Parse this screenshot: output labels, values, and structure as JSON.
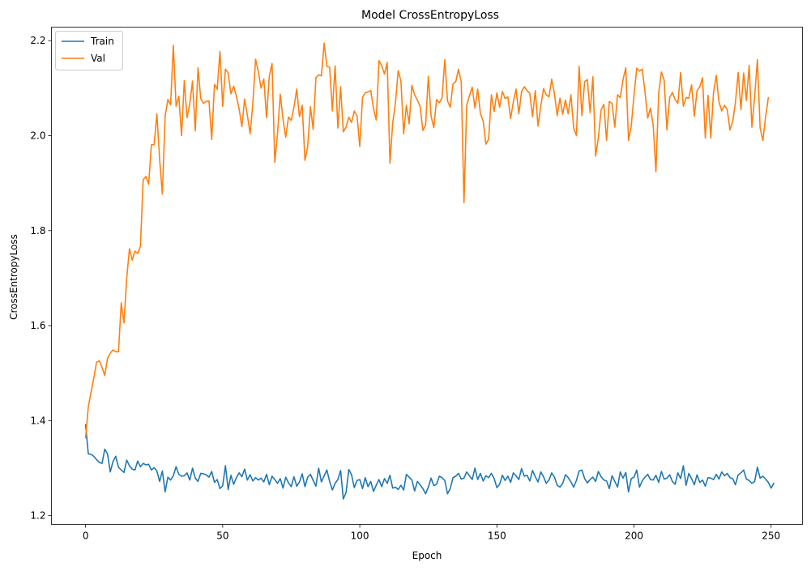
{
  "chart_data": {
    "type": "line",
    "title": "Model CrossEntropyLoss",
    "xlabel": "Epoch",
    "ylabel": "CrossEntropyLoss",
    "xlim": [
      -12.45,
      261.45
    ],
    "ylim": [
      1.1815,
      2.2285
    ],
    "xticks": [
      0,
      50,
      100,
      150,
      200,
      250
    ],
    "yticks": [
      1.2,
      1.4,
      1.6,
      1.8,
      2.0,
      2.2
    ],
    "ytick_labels": [
      "1.2",
      "1.4",
      "1.6",
      "1.8",
      "2.0",
      "2.2"
    ],
    "grid": false,
    "legend_position": "top-left",
    "series": [
      {
        "name": "Train",
        "color": "#1f77b4",
        "values": [
          1.391,
          1.33,
          1.329,
          1.325,
          1.318,
          1.312,
          1.31,
          1.34,
          1.33,
          1.292,
          1.314,
          1.325,
          1.302,
          1.296,
          1.291,
          1.317,
          1.305,
          1.298,
          1.296,
          1.315,
          1.303,
          1.31,
          1.307,
          1.308,
          1.296,
          1.301,
          1.294,
          1.272,
          1.294,
          1.25,
          1.281,
          1.275,
          1.284,
          1.303,
          1.287,
          1.283,
          1.284,
          1.29,
          1.275,
          1.3,
          1.279,
          1.272,
          1.289,
          1.288,
          1.286,
          1.281,
          1.293,
          1.27,
          1.276,
          1.257,
          1.263,
          1.305,
          1.255,
          1.285,
          1.266,
          1.28,
          1.29,
          1.282,
          1.298,
          1.275,
          1.286,
          1.273,
          1.28,
          1.275,
          1.279,
          1.271,
          1.287,
          1.265,
          1.283,
          1.276,
          1.268,
          1.278,
          1.258,
          1.281,
          1.269,
          1.261,
          1.282,
          1.262,
          1.271,
          1.288,
          1.261,
          1.281,
          1.287,
          1.274,
          1.262,
          1.3,
          1.271,
          1.284,
          1.296,
          1.272,
          1.254,
          1.268,
          1.276,
          1.295,
          1.235,
          1.249,
          1.297,
          1.286,
          1.259,
          1.274,
          1.276,
          1.257,
          1.28,
          1.261,
          1.272,
          1.251,
          1.264,
          1.276,
          1.261,
          1.278,
          1.268,
          1.285,
          1.258,
          1.26,
          1.255,
          1.264,
          1.254,
          1.287,
          1.281,
          1.275,
          1.252,
          1.272,
          1.265,
          1.257,
          1.246,
          1.26,
          1.279,
          1.263,
          1.266,
          1.283,
          1.28,
          1.274,
          1.246,
          1.257,
          1.28,
          1.283,
          1.289,
          1.277,
          1.279,
          1.292,
          1.284,
          1.276,
          1.3,
          1.276,
          1.289,
          1.273,
          1.284,
          1.28,
          1.289,
          1.278,
          1.259,
          1.266,
          1.285,
          1.274,
          1.283,
          1.27,
          1.29,
          1.284,
          1.276,
          1.299,
          1.283,
          1.285,
          1.273,
          1.295,
          1.282,
          1.271,
          1.292,
          1.282,
          1.268,
          1.275,
          1.29,
          1.281,
          1.264,
          1.26,
          1.268,
          1.286,
          1.28,
          1.271,
          1.26,
          1.274,
          1.294,
          1.296,
          1.278,
          1.269,
          1.276,
          1.281,
          1.272,
          1.293,
          1.282,
          1.275,
          1.273,
          1.257,
          1.284,
          1.272,
          1.26,
          1.292,
          1.279,
          1.291,
          1.25,
          1.278,
          1.281,
          1.296,
          1.26,
          1.273,
          1.281,
          1.287,
          1.276,
          1.275,
          1.285,
          1.27,
          1.293,
          1.277,
          1.279,
          1.286,
          1.272,
          1.266,
          1.29,
          1.278,
          1.305,
          1.264,
          1.289,
          1.278,
          1.265,
          1.286,
          1.27,
          1.275,
          1.262,
          1.28,
          1.279,
          1.276,
          1.287,
          1.277,
          1.292,
          1.284,
          1.289,
          1.28,
          1.278,
          1.265,
          1.286,
          1.29,
          1.296,
          1.277,
          1.274,
          1.268,
          1.272,
          1.302,
          1.279,
          1.283,
          1.277,
          1.27,
          1.258,
          1.268
        ]
      },
      {
        "name": "Val",
        "color": "#ff7f0e",
        "values": [
          1.364,
          1.43,
          1.46,
          1.49,
          1.523,
          1.526,
          1.512,
          1.495,
          1.531,
          1.542,
          1.549,
          1.545,
          1.545,
          1.648,
          1.606,
          1.7,
          1.762,
          1.738,
          1.757,
          1.752,
          1.767,
          1.907,
          1.914,
          1.898,
          1.981,
          1.981,
          2.046,
          1.95,
          1.877,
          2.04,
          2.076,
          2.065,
          2.19,
          2.062,
          2.083,
          2.0,
          2.116,
          2.038,
          2.068,
          2.115,
          2.01,
          2.143,
          2.078,
          2.068,
          2.072,
          2.073,
          1.992,
          2.108,
          2.098,
          2.177,
          2.062,
          2.14,
          2.132,
          2.088,
          2.104,
          2.083,
          2.056,
          2.019,
          2.077,
          2.043,
          2.004,
          2.068,
          2.161,
          2.135,
          2.1,
          2.119,
          2.038,
          2.125,
          2.152,
          1.944,
          2.005,
          2.087,
          2.034,
          1.997,
          2.039,
          2.032,
          2.06,
          2.098,
          2.04,
          2.064,
          1.948,
          1.977,
          2.061,
          2.013,
          2.122,
          2.128,
          2.126,
          2.195,
          2.146,
          2.144,
          2.052,
          2.147,
          2.016,
          2.103,
          2.008,
          2.018,
          2.039,
          2.028,
          2.052,
          2.042,
          1.977,
          2.081,
          2.09,
          2.092,
          2.095,
          2.057,
          2.033,
          2.158,
          2.147,
          2.13,
          2.154,
          1.942,
          2.026,
          2.069,
          2.137,
          2.115,
          2.004,
          2.064,
          2.025,
          2.106,
          2.086,
          2.075,
          2.062,
          2.011,
          2.022,
          2.125,
          2.041,
          2.017,
          2.076,
          2.069,
          2.08,
          2.16,
          2.073,
          2.06,
          2.109,
          2.114,
          2.14,
          2.113,
          1.859,
          2.064,
          2.084,
          2.102,
          2.058,
          2.098,
          2.046,
          2.031,
          1.982,
          1.993,
          2.086,
          2.051,
          2.09,
          2.06,
          2.093,
          2.078,
          2.082,
          2.036,
          2.071,
          2.098,
          2.046,
          2.093,
          2.103,
          2.095,
          2.089,
          2.04,
          2.095,
          2.02,
          2.062,
          2.099,
          2.086,
          2.082,
          2.119,
          2.088,
          2.042,
          2.079,
          2.045,
          2.075,
          2.046,
          2.086,
          2.016,
          2.0,
          2.146,
          2.042,
          2.114,
          2.118,
          2.048,
          2.124,
          1.957,
          1.995,
          2.054,
          2.066,
          1.99,
          2.072,
          2.068,
          2.018,
          2.086,
          2.08,
          2.118,
          2.143,
          1.99,
          2.021,
          2.085,
          2.142,
          2.136,
          2.14,
          2.093,
          2.037,
          2.058,
          2.022,
          1.924,
          2.09,
          2.134,
          2.117,
          2.012,
          2.08,
          2.091,
          2.076,
          2.068,
          2.133,
          2.062,
          2.08,
          2.079,
          2.107,
          2.041,
          2.095,
          2.103,
          2.122,
          1.995,
          2.085,
          1.995,
          2.091,
          2.127,
          2.071,
          2.052,
          2.064,
          2.055,
          2.012,
          2.03,
          2.07,
          2.133,
          2.055,
          2.132,
          2.074,
          2.148,
          2.018,
          2.082,
          2.16,
          2.016,
          1.99,
          2.04,
          2.08
        ]
      }
    ]
  }
}
